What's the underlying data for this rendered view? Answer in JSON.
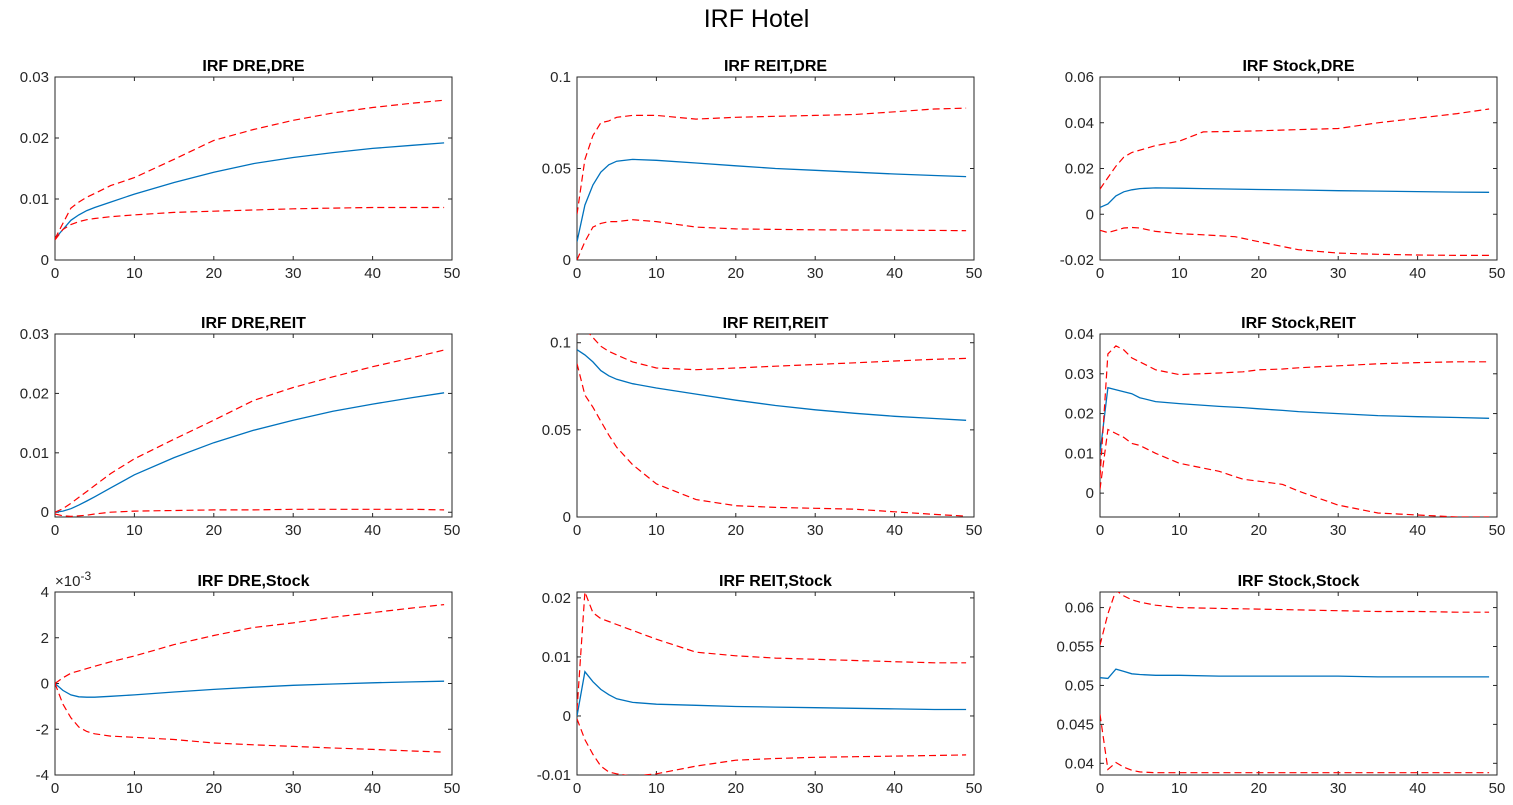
{
  "figure": {
    "title": "IRF Hotel"
  },
  "colors": {
    "median": "#0072BD",
    "bands": "#FF0000",
    "axes": "#262626",
    "background": "#FFFFFF"
  },
  "chart_data": [
    {
      "type": "line",
      "title": "IRF DRE,DRE",
      "xlim": [
        0,
        50
      ],
      "ylim": [
        0,
        0.03
      ],
      "xticks": [
        0,
        10,
        20,
        30,
        40,
        50
      ],
      "xtick_labels": [
        "0",
        "10",
        "20",
        "30",
        "40",
        "50"
      ],
      "yticks": [
        0,
        0.01,
        0.02,
        0.03
      ],
      "ytick_labels": [
        "0",
        "0.01",
        "0.02",
        "0.03"
      ],
      "x": [
        0,
        1,
        2,
        3,
        4,
        5,
        7,
        10,
        15,
        20,
        25,
        30,
        35,
        40,
        45,
        49
      ],
      "series": [
        {
          "role": "median",
          "values": [
            0.0035,
            0.005,
            0.0065,
            0.0074,
            0.0081,
            0.0086,
            0.0095,
            0.0108,
            0.0127,
            0.0144,
            0.0158,
            0.0168,
            0.0176,
            0.0183,
            0.0188,
            0.0192
          ]
        },
        {
          "role": "upper",
          "values": [
            0.0035,
            0.006,
            0.0085,
            0.0095,
            0.0103,
            0.0109,
            0.0122,
            0.0135,
            0.0165,
            0.0196,
            0.0214,
            0.0229,
            0.0241,
            0.025,
            0.0257,
            0.0262
          ]
        },
        {
          "role": "lower",
          "values": [
            0.0033,
            0.005,
            0.0058,
            0.0063,
            0.0066,
            0.0068,
            0.0071,
            0.0074,
            0.0078,
            0.008,
            0.0082,
            0.0084,
            0.0085,
            0.0086,
            0.0086,
            0.0086
          ]
        }
      ]
    },
    {
      "type": "line",
      "title": "IRF REIT,DRE",
      "xlim": [
        0,
        50
      ],
      "ylim": [
        0,
        0.1
      ],
      "xticks": [
        0,
        10,
        20,
        30,
        40,
        50
      ],
      "xtick_labels": [
        "0",
        "10",
        "20",
        "30",
        "40",
        "50"
      ],
      "yticks": [
        0,
        0.05,
        0.1
      ],
      "ytick_labels": [
        "0",
        "0.05",
        "0.1"
      ],
      "x": [
        0,
        1,
        2,
        3,
        4,
        5,
        7,
        10,
        15,
        20,
        25,
        30,
        35,
        40,
        45,
        49
      ],
      "series": [
        {
          "role": "median",
          "values": [
            0.01,
            0.03,
            0.041,
            0.048,
            0.052,
            0.054,
            0.055,
            0.0545,
            0.053,
            0.0515,
            0.05,
            0.049,
            0.048,
            0.047,
            0.0462,
            0.0456
          ]
        },
        {
          "role": "upper",
          "values": [
            0.025,
            0.055,
            0.068,
            0.075,
            0.076,
            0.078,
            0.079,
            0.079,
            0.077,
            0.078,
            0.0785,
            0.079,
            0.0795,
            0.081,
            0.0825,
            0.083
          ]
        },
        {
          "role": "lower",
          "values": [
            0.0,
            0.01,
            0.018,
            0.02,
            0.021,
            0.021,
            0.022,
            0.021,
            0.018,
            0.017,
            0.0167,
            0.0165,
            0.0164,
            0.0163,
            0.0162,
            0.016
          ]
        }
      ]
    },
    {
      "type": "line",
      "title": "IRF Stock,DRE",
      "xlim": [
        0,
        50
      ],
      "ylim": [
        -0.02,
        0.06
      ],
      "xticks": [
        0,
        10,
        20,
        30,
        40,
        50
      ],
      "xtick_labels": [
        "0",
        "10",
        "20",
        "30",
        "40",
        "50"
      ],
      "yticks": [
        -0.02,
        0,
        0.02,
        0.04,
        0.06
      ],
      "ytick_labels": [
        "-0.02",
        "0",
        "0.02",
        "0.04",
        "0.06"
      ],
      "x": [
        0,
        1,
        2,
        3,
        4,
        5,
        7,
        10,
        13,
        17,
        20,
        25,
        30,
        35,
        40,
        45,
        49
      ],
      "series": [
        {
          "role": "median",
          "values": [
            0.003,
            0.0045,
            0.008,
            0.0098,
            0.0107,
            0.0112,
            0.0115,
            0.0114,
            0.0112,
            0.011,
            0.0108,
            0.0106,
            0.0103,
            0.0101,
            0.0099,
            0.0097,
            0.0096
          ]
        },
        {
          "role": "upper",
          "values": [
            0.011,
            0.016,
            0.021,
            0.025,
            0.027,
            0.028,
            0.03,
            0.032,
            0.036,
            0.0362,
            0.0365,
            0.037,
            0.0375,
            0.04,
            0.042,
            0.044,
            0.046
          ]
        },
        {
          "role": "lower",
          "values": [
            -0.007,
            -0.008,
            -0.007,
            -0.006,
            -0.0058,
            -0.006,
            -0.0075,
            -0.0085,
            -0.009,
            -0.0098,
            -0.012,
            -0.0155,
            -0.017,
            -0.0175,
            -0.0178,
            -0.018,
            -0.018
          ]
        }
      ]
    },
    {
      "type": "line",
      "title": "IRF DRE,REIT",
      "xlim": [
        0,
        50
      ],
      "ylim": [
        -0.0008,
        0.03
      ],
      "xticks": [
        0,
        10,
        20,
        30,
        40,
        50
      ],
      "xtick_labels": [
        "0",
        "10",
        "20",
        "30",
        "40",
        "50"
      ],
      "yticks": [
        0,
        0.01,
        0.02,
        0.03
      ],
      "ytick_labels": [
        "0",
        "0.01",
        "0.02",
        "0.03"
      ],
      "x": [
        0,
        1,
        2,
        3,
        4,
        5,
        7,
        10,
        15,
        20,
        25,
        30,
        35,
        40,
        45,
        49
      ],
      "series": [
        {
          "role": "median",
          "values": [
            0.0,
            0.0002,
            0.0006,
            0.0012,
            0.0019,
            0.0026,
            0.0041,
            0.0063,
            0.0092,
            0.0117,
            0.0138,
            0.0155,
            0.017,
            0.0182,
            0.0193,
            0.0201
          ]
        },
        {
          "role": "upper",
          "values": [
            0.0,
            0.0006,
            0.0015,
            0.0025,
            0.0035,
            0.0045,
            0.0065,
            0.009,
            0.0123,
            0.0155,
            0.0188,
            0.021,
            0.0228,
            0.0245,
            0.026,
            0.0273
          ]
        },
        {
          "role": "lower",
          "values": [
            -0.0003,
            -0.0006,
            -0.0007,
            -0.0006,
            -0.0005,
            -0.0003,
            0.0,
            0.0002,
            0.0003,
            0.0004,
            0.0004,
            0.0005,
            0.0005,
            0.0005,
            0.0005,
            0.0004
          ]
        }
      ]
    },
    {
      "type": "line",
      "title": "IRF REIT,REIT",
      "xlim": [
        0,
        50
      ],
      "ylim": [
        0,
        0.105
      ],
      "xticks": [
        0,
        10,
        20,
        30,
        40,
        50
      ],
      "xtick_labels": [
        "0",
        "10",
        "20",
        "30",
        "40",
        "50"
      ],
      "yticks": [
        0,
        0.05,
        0.1
      ],
      "ytick_labels": [
        "0",
        "0.05",
        "0.1"
      ],
      "x": [
        0,
        1,
        2,
        3,
        4,
        5,
        7,
        10,
        15,
        20,
        25,
        30,
        35,
        40,
        45,
        49
      ],
      "series": [
        {
          "role": "median",
          "values": [
            0.096,
            0.093,
            0.089,
            0.084,
            0.081,
            0.079,
            0.0765,
            0.074,
            0.0705,
            0.067,
            0.064,
            0.0615,
            0.0595,
            0.0578,
            0.0565,
            0.0555
          ]
        },
        {
          "role": "upper",
          "values": [
            0.105,
            0.108,
            0.103,
            0.098,
            0.095,
            0.093,
            0.089,
            0.0855,
            0.0845,
            0.0855,
            0.0865,
            0.0875,
            0.0885,
            0.0895,
            0.0905,
            0.091
          ]
        },
        {
          "role": "lower",
          "values": [
            0.088,
            0.07,
            0.063,
            0.055,
            0.047,
            0.04,
            0.03,
            0.019,
            0.01,
            0.0065,
            0.0055,
            0.005,
            0.0045,
            0.003,
            0.0015,
            0.0005
          ]
        }
      ]
    },
    {
      "type": "line",
      "title": "IRF Stock,REIT",
      "xlim": [
        0,
        50
      ],
      "ylim": [
        -0.006,
        0.04
      ],
      "xticks": [
        0,
        10,
        20,
        30,
        40,
        50
      ],
      "xtick_labels": [
        "0",
        "10",
        "20",
        "30",
        "40",
        "50"
      ],
      "yticks": [
        0,
        0.01,
        0.02,
        0.03,
        0.04
      ],
      "ytick_labels": [
        "0",
        "0.01",
        "0.02",
        "0.03",
        "0.04"
      ],
      "x": [
        0,
        1,
        2,
        3,
        4,
        5,
        7,
        10,
        15,
        18,
        20,
        23,
        25,
        30,
        35,
        40,
        45,
        49
      ],
      "series": [
        {
          "role": "median",
          "values": [
            0.01,
            0.0265,
            0.026,
            0.0255,
            0.025,
            0.024,
            0.023,
            0.0225,
            0.0218,
            0.0215,
            0.0212,
            0.0208,
            0.0205,
            0.02,
            0.0195,
            0.0192,
            0.019,
            0.0188
          ]
        },
        {
          "role": "upper",
          "values": [
            0.004,
            0.035,
            0.037,
            0.036,
            0.034,
            0.033,
            0.031,
            0.0298,
            0.0302,
            0.0305,
            0.031,
            0.0312,
            0.0315,
            0.032,
            0.0325,
            0.0328,
            0.033,
            0.033
          ]
        },
        {
          "role": "lower",
          "values": [
            0.001,
            0.016,
            0.015,
            0.014,
            0.0125,
            0.012,
            0.01,
            0.0075,
            0.0055,
            0.0035,
            0.003,
            0.0022,
            0.0005,
            -0.003,
            -0.005,
            -0.0055,
            -0.006,
            -0.006
          ]
        }
      ]
    },
    {
      "type": "line",
      "title": "IRF DRE,Stock",
      "xlim": [
        0,
        50
      ],
      "ylim": [
        -4,
        4
      ],
      "y_scale_exponent": "×10-3",
      "xticks": [
        0,
        10,
        20,
        30,
        40,
        50
      ],
      "xtick_labels": [
        "0",
        "10",
        "20",
        "30",
        "40",
        "50"
      ],
      "yticks": [
        -4,
        -2,
        0,
        2,
        4
      ],
      "ytick_labels": [
        "-4",
        "-2",
        "0",
        "2",
        "4"
      ],
      "x": [
        0,
        1,
        2,
        3,
        4,
        5,
        7,
        10,
        15,
        20,
        25,
        30,
        35,
        40,
        45,
        49
      ],
      "series": [
        {
          "role": "median",
          "values": [
            0.0,
            -0.3,
            -0.5,
            -0.58,
            -0.6,
            -0.6,
            -0.56,
            -0.5,
            -0.37,
            -0.26,
            -0.16,
            -0.08,
            -0.02,
            0.03,
            0.07,
            0.1
          ]
        },
        {
          "role": "upper",
          "values": [
            0.0,
            0.25,
            0.45,
            0.55,
            0.65,
            0.75,
            0.95,
            1.2,
            1.7,
            2.1,
            2.45,
            2.65,
            2.9,
            3.1,
            3.3,
            3.45
          ]
        },
        {
          "role": "lower",
          "values": [
            0.0,
            -0.9,
            -1.5,
            -1.9,
            -2.1,
            -2.2,
            -2.3,
            -2.35,
            -2.45,
            -2.6,
            -2.68,
            -2.75,
            -2.82,
            -2.88,
            -2.95,
            -3.0
          ]
        }
      ]
    },
    {
      "type": "line",
      "title": "IRF REIT,Stock",
      "xlim": [
        0,
        50
      ],
      "ylim": [
        -0.01,
        0.021
      ],
      "xticks": [
        0,
        10,
        20,
        30,
        40,
        50
      ],
      "xtick_labels": [
        "0",
        "10",
        "20",
        "30",
        "40",
        "50"
      ],
      "yticks": [
        -0.01,
        0,
        0.01,
        0.02
      ],
      "ytick_labels": [
        "-0.01",
        "0",
        "0.01",
        "0.02"
      ],
      "x": [
        0,
        1,
        2,
        3,
        4,
        5,
        7,
        10,
        15,
        20,
        25,
        30,
        35,
        40,
        45,
        49
      ],
      "series": [
        {
          "role": "median",
          "values": [
            0.0,
            0.0075,
            0.0058,
            0.0045,
            0.0036,
            0.0029,
            0.0023,
            0.002,
            0.0018,
            0.0016,
            0.0015,
            0.0014,
            0.0013,
            0.0012,
            0.0011,
            0.0011
          ]
        },
        {
          "role": "upper",
          "values": [
            0.001,
            0.021,
            0.0175,
            0.0165,
            0.016,
            0.0155,
            0.0145,
            0.013,
            0.0108,
            0.0102,
            0.0098,
            0.0096,
            0.0094,
            0.0092,
            0.009,
            0.009
          ]
        },
        {
          "role": "lower",
          "values": [
            -0.0005,
            -0.004,
            -0.0065,
            -0.0085,
            -0.0095,
            -0.0098,
            -0.0102,
            -0.0098,
            -0.0085,
            -0.0075,
            -0.0072,
            -0.007,
            -0.0069,
            -0.0068,
            -0.0067,
            -0.0066
          ]
        }
      ]
    },
    {
      "type": "line",
      "title": "IRF Stock,Stock",
      "xlim": [
        0,
        50
      ],
      "ylim": [
        0.0385,
        0.062
      ],
      "xticks": [
        0,
        10,
        20,
        30,
        40,
        50
      ],
      "xtick_labels": [
        "0",
        "10",
        "20",
        "30",
        "40",
        "50"
      ],
      "yticks": [
        0.04,
        0.045,
        0.05,
        0.055,
        0.06
      ],
      "ytick_labels": [
        "0.04",
        "0.045",
        "0.05",
        "0.055",
        "0.06"
      ],
      "x": [
        0,
        1,
        2,
        3,
        4,
        5,
        7,
        10,
        15,
        20,
        25,
        30,
        35,
        40,
        45,
        49
      ],
      "series": [
        {
          "role": "median",
          "values": [
            0.051,
            0.0509,
            0.0521,
            0.0518,
            0.0515,
            0.0514,
            0.0513,
            0.0513,
            0.0512,
            0.0512,
            0.0512,
            0.0512,
            0.0511,
            0.0511,
            0.0511,
            0.0511
          ]
        },
        {
          "role": "upper",
          "values": [
            0.0552,
            0.0592,
            0.0622,
            0.0615,
            0.061,
            0.0607,
            0.0603,
            0.06,
            0.0599,
            0.0598,
            0.0597,
            0.0596,
            0.0595,
            0.0595,
            0.0594,
            0.0594
          ]
        },
        {
          "role": "lower",
          "values": [
            0.0463,
            0.0392,
            0.0401,
            0.0395,
            0.0391,
            0.0389,
            0.0388,
            0.0388,
            0.0388,
            0.0388,
            0.0388,
            0.0388,
            0.0388,
            0.0388,
            0.0388,
            0.0388
          ]
        }
      ]
    }
  ]
}
